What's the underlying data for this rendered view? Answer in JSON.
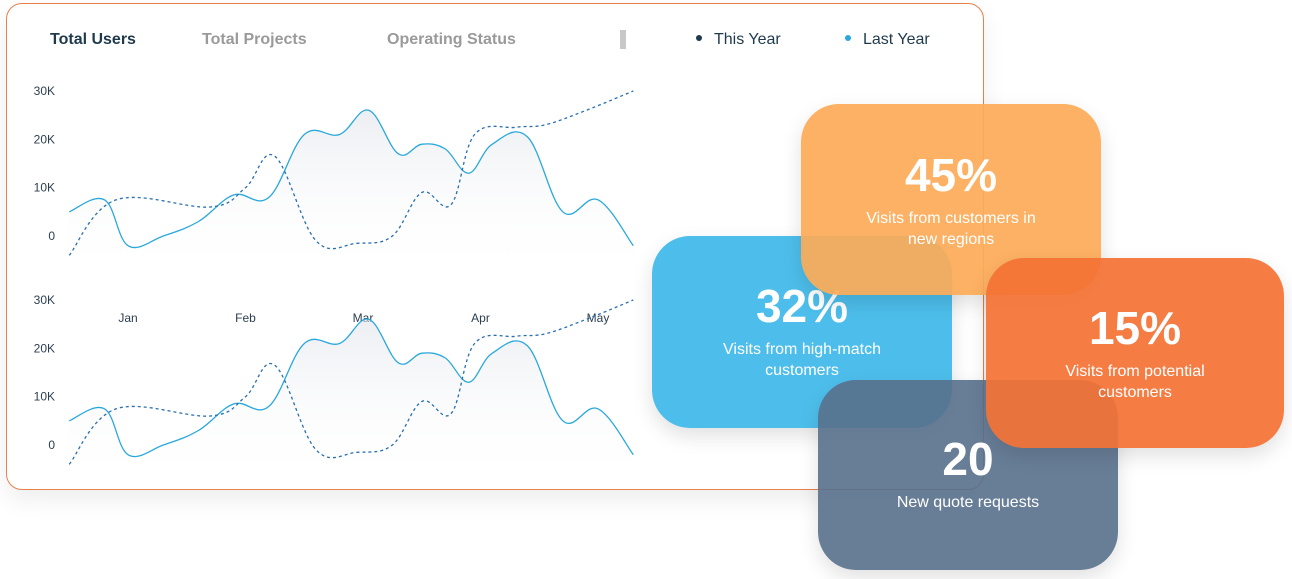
{
  "tabs": [
    {
      "label": "Total Users",
      "active": true
    },
    {
      "label": "Total Projects",
      "active": false
    },
    {
      "label": "Operating Status",
      "active": false
    }
  ],
  "legend": [
    {
      "label": "This Year",
      "color": "#1f3a4d"
    },
    {
      "label": "Last Year",
      "color": "#2aa8dc"
    }
  ],
  "chart_data": [
    {
      "type": "line",
      "categories": [
        "Jan",
        "Feb",
        "Mar",
        "Apr",
        "May"
      ],
      "yticks": [
        "30K",
        "20K",
        "10K",
        "0"
      ],
      "ylim": [
        0,
        30000
      ],
      "legend_position": "top-right",
      "grid": false,
      "series": [
        {
          "name": "Last Year",
          "style": "solid",
          "color": "#2aa8dc",
          "x": [
            -0.5,
            -0.2,
            0.0,
            0.3,
            0.6,
            0.9,
            1.2,
            1.5,
            1.8,
            2.05,
            2.3,
            2.5,
            2.7,
            2.9,
            3.1,
            3.4,
            3.7,
            4.0,
            4.3
          ],
          "values": [
            5000,
            7500,
            -2000,
            0,
            3000,
            8500,
            8000,
            21000,
            21000,
            26000,
            17000,
            19000,
            18000,
            13000,
            19000,
            20500,
            5000,
            7500,
            -2000
          ]
        },
        {
          "name": "This Year",
          "style": "dashed",
          "color": "#2a6fb0",
          "x": [
            -0.5,
            -0.1,
            0.7,
            1.0,
            1.25,
            1.6,
            1.95,
            2.25,
            2.5,
            2.75,
            2.95,
            3.3,
            3.55,
            3.9,
            4.3
          ],
          "values": [
            -4000,
            7500,
            6000,
            10000,
            16500,
            -1000,
            -1500,
            0,
            9000,
            6500,
            21000,
            22500,
            23000,
            26000,
            30000
          ]
        }
      ]
    },
    {
      "type": "line",
      "categories": [],
      "yticks": [
        "30K",
        "20K",
        "10K",
        "0"
      ],
      "ylim": [
        0,
        30000
      ],
      "grid": false,
      "series": [
        {
          "name": "Last Year",
          "style": "solid",
          "color": "#2aa8dc",
          "x": [
            -0.5,
            -0.2,
            0.0,
            0.3,
            0.6,
            0.9,
            1.2,
            1.5,
            1.8,
            2.05,
            2.3,
            2.5,
            2.7,
            2.9,
            3.1,
            3.4,
            3.7,
            4.0,
            4.3
          ],
          "values": [
            5000,
            7500,
            -2000,
            0,
            3000,
            8500,
            8000,
            21000,
            21000,
            26000,
            17000,
            19000,
            18000,
            13000,
            19000,
            20500,
            5000,
            7500,
            -2000
          ]
        },
        {
          "name": "This Year",
          "style": "dashed",
          "color": "#2a6fb0",
          "x": [
            -0.5,
            -0.1,
            0.7,
            1.0,
            1.25,
            1.6,
            1.95,
            2.25,
            2.5,
            2.75,
            2.95,
            3.3,
            3.55,
            3.9,
            4.3
          ],
          "values": [
            -4000,
            7500,
            6000,
            10000,
            16500,
            -1000,
            -1500,
            0,
            9000,
            6500,
            21000,
            22500,
            23000,
            26000,
            30000
          ]
        }
      ]
    }
  ],
  "cards": [
    {
      "value": "45%",
      "label": "Visits from customers in new regions",
      "color": "#fcab58"
    },
    {
      "value": "32%",
      "label": "Visits from high-match customers",
      "color": "#40b9ea"
    },
    {
      "value": "15%",
      "label": "Visits from potential customers",
      "color": "#f47234"
    },
    {
      "value": "20",
      "label": "New quote requests",
      "color": "#58708c"
    }
  ]
}
